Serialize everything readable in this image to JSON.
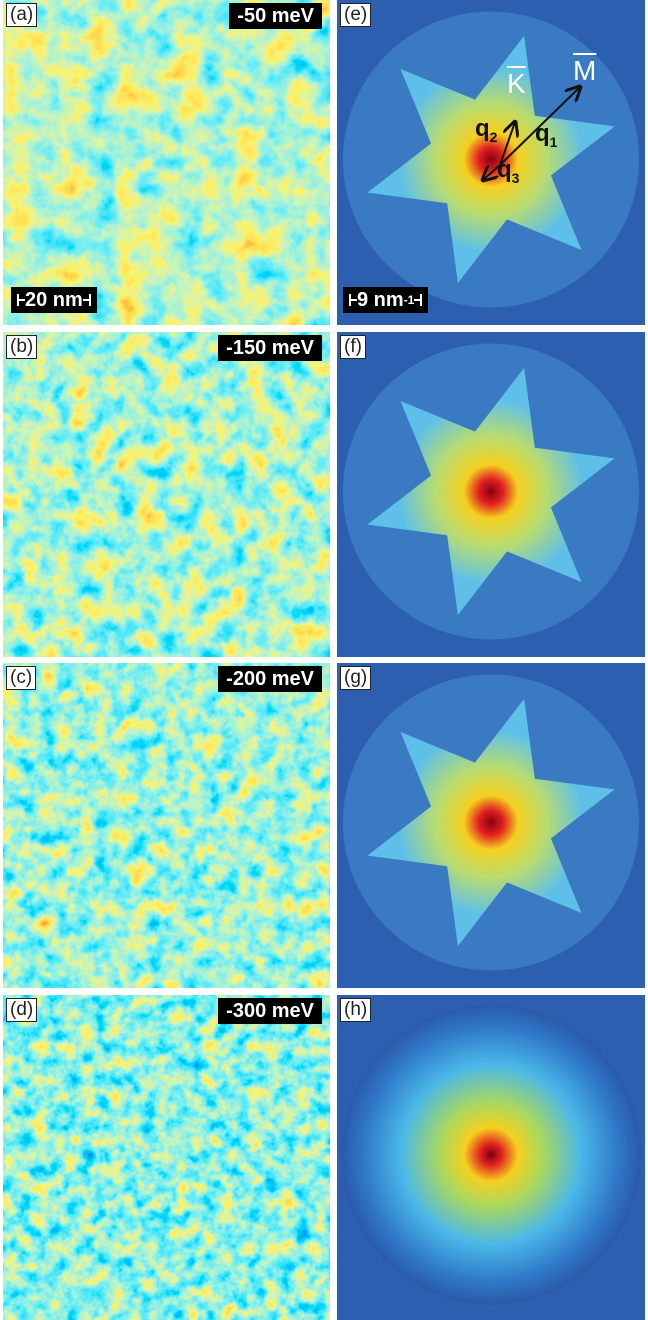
{
  "panels": [
    {
      "label": "(a)",
      "energy": "-50 meV",
      "kind": "map"
    },
    {
      "label": "(b)",
      "energy": "-150 meV",
      "kind": "map"
    },
    {
      "label": "(c)",
      "energy": "-200 meV",
      "kind": "map"
    },
    {
      "label": "(d)",
      "energy": "-300 meV",
      "kind": "map"
    },
    {
      "label": "(e)",
      "kind": "fft"
    },
    {
      "label": "(f)",
      "kind": "fft"
    },
    {
      "label": "(g)",
      "kind": "fft"
    },
    {
      "label": "(h)",
      "kind": "fft"
    }
  ],
  "scale_bars": {
    "real_space": {
      "text": "20 nm"
    },
    "reciprocal": {
      "text": "9 nm",
      "superscript": "-1"
    }
  },
  "annotations": {
    "k_point": "K",
    "m_point": "M",
    "q1": {
      "symbol": "q",
      "subscript": "1"
    },
    "q2": {
      "symbol": "q",
      "subscript": "2"
    },
    "q3": {
      "symbol": "q",
      "subscript": "3"
    }
  }
}
